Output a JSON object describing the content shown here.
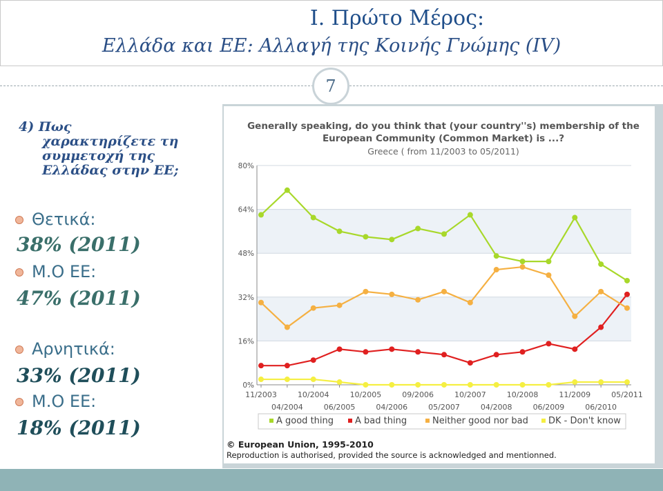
{
  "slide": {
    "title_line1": "Ι. Πρώτο Μέρος:",
    "title_line2": "Ελλάδα και ΕΕ: Αλλαγή της Κοινής Γνώμης (IV)",
    "slide_number": "7"
  },
  "left": {
    "question_num": "4) Πως",
    "question_rest": "χαρακτηρίζετε τη συμμετοχή της Ελλάδας στην ΕΕ;",
    "bullets": [
      {
        "label": "Θετικά:",
        "value": "38% (2011)"
      },
      {
        "label": "Μ.Ο ΕΕ:",
        "value": "47% (2011)"
      },
      {
        "label": "Αρνητικά:",
        "value": "33% (2011)"
      },
      {
        "label": "Μ.Ο ΕΕ:",
        "value": "18% (2011)"
      }
    ]
  },
  "chart_data": {
    "type": "line",
    "title": "Generally speaking, do you think that (your country''s) membership of the European Community (Common Market) is ...?",
    "title_line1": "Generally speaking, do you think that (your country''s) membership of the",
    "title_line2": "European Community (Common Market) is ...?",
    "subtitle": "Greece ( from 11/2003 to 05/2011)",
    "ylim": [
      0,
      80
    ],
    "yticks": [
      "0%",
      "16%",
      "32%",
      "48%",
      "64%",
      "80%"
    ],
    "x": [
      "11/2003",
      "04/2004",
      "10/2004",
      "06/2005",
      "10/2005",
      "04/2006",
      "09/2006",
      "05/2007",
      "10/2007",
      "04/2008",
      "10/2008",
      "06/2009",
      "11/2009",
      "06/2010",
      "05/2011"
    ],
    "xtick_row1": [
      "11/2003",
      "10/2004",
      "10/2005",
      "09/2006",
      "10/2007",
      "10/2008",
      "11/2009",
      "05/2011"
    ],
    "xtick_row2": [
      "04/2004",
      "06/2005",
      "04/2006",
      "05/2007",
      "04/2008",
      "06/2009",
      "06/2010"
    ],
    "series": [
      {
        "name": "A good thing",
        "color": "#a8d82a",
        "values": [
          62,
          71,
          61,
          56,
          54,
          53,
          57,
          55,
          62,
          47,
          45,
          45,
          61,
          44,
          38
        ]
      },
      {
        "name": "A bad thing",
        "color": "#e02020",
        "values": [
          7,
          7,
          9,
          13,
          12,
          13,
          12,
          11,
          8,
          11,
          12,
          15,
          13,
          21,
          33
        ]
      },
      {
        "name": "Neither good nor bad",
        "color": "#f5b042",
        "values": [
          30,
          21,
          28,
          29,
          34,
          33,
          31,
          34,
          30,
          42,
          43,
          40,
          25,
          34,
          28
        ]
      },
      {
        "name": "DK - Don't know",
        "color": "#f5ef42",
        "values": [
          2,
          2,
          2,
          1,
          0,
          0,
          0,
          0,
          0,
          0,
          0,
          0,
          1,
          1,
          1
        ]
      }
    ],
    "grid": true,
    "legend_position": "bottom",
    "copyright": "© European Union, 1995-2010",
    "reproduction": "Reproduction is authorised, provided the source is acknowledged and mentionned."
  }
}
